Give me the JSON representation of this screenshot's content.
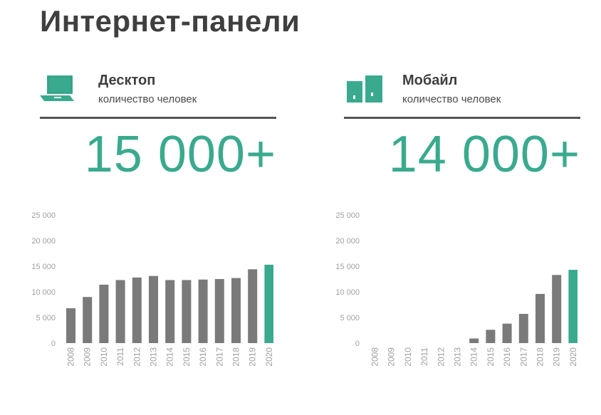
{
  "page": {
    "title": "Интернет-панели"
  },
  "colors": {
    "accent": "#3aaa8e",
    "bar": "#7a7a7a",
    "text": "#3f3f3f",
    "axis_text": "#a0a0a0"
  },
  "panels": [
    {
      "id": "desktop",
      "icon": "laptop-icon",
      "title": "Десктоп",
      "subtitle": "количество человек",
      "big_number": "15 000+"
    },
    {
      "id": "mobile",
      "icon": "mobile-devices-icon",
      "title": "Мобайл",
      "subtitle": "количество человек",
      "big_number": "14 000+"
    }
  ],
  "chart_data": [
    {
      "type": "bar",
      "categories": [
        "2008",
        "2009",
        "2010",
        "2011",
        "2012",
        "2013",
        "2014",
        "2015",
        "2016",
        "2017",
        "2018",
        "2019",
        "2020"
      ],
      "values": [
        6800,
        9000,
        11400,
        12300,
        12800,
        13100,
        12300,
        12300,
        12400,
        12500,
        12700,
        14400,
        15300
      ],
      "highlight_index": 12,
      "ylim": [
        0,
        25000
      ],
      "yticks": [
        0,
        5000,
        10000,
        15000,
        20000,
        25000
      ],
      "ytick_labels": [
        "0",
        "5 000",
        "10 000",
        "15 000",
        "20 000",
        "25 000"
      ],
      "grid": false
    },
    {
      "type": "bar",
      "categories": [
        "2008",
        "2009",
        "2010",
        "2011",
        "2012",
        "2013",
        "2014",
        "2015",
        "2016",
        "2017",
        "2018",
        "2019",
        "2020"
      ],
      "values": [
        0,
        0,
        0,
        0,
        0,
        0,
        900,
        2600,
        3800,
        5700,
        9600,
        13300,
        14300
      ],
      "highlight_index": 12,
      "ylim": [
        0,
        25000
      ],
      "yticks": [
        0,
        5000,
        10000,
        15000,
        20000,
        25000
      ],
      "ytick_labels": [
        "0",
        "5 000",
        "10 000",
        "15 000",
        "20 000",
        "25 000"
      ],
      "grid": false
    }
  ]
}
